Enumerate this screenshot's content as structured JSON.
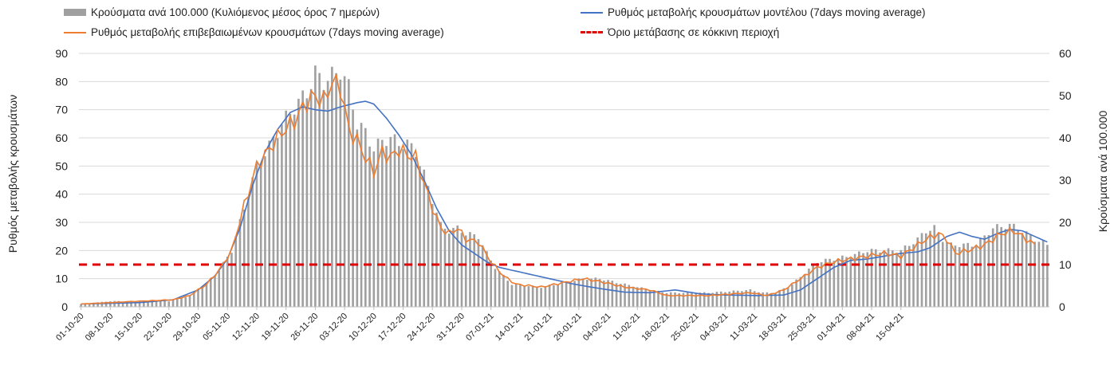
{
  "chart_data": {
    "type": "bar+line",
    "legend": [
      {
        "key": "bars",
        "label": "Κρούσματα ανά 100.000 (Κυλιόμενος μέσος όρος 7 ημερών)",
        "color": "#a0a0a0"
      },
      {
        "key": "model",
        "label": "Ρυθμός μεταβολής κρουσμάτων μοντέλου (7days moving average)",
        "color": "#4472c4"
      },
      {
        "key": "confirmed",
        "label": "Ρυθμός μεταβολής επιβεβαιωμένων κρουσμάτων (7days moving average)",
        "color": "#ed7d31"
      },
      {
        "key": "threshold",
        "label": "Όριο μετάβασης σε κόκκινη περιοχή",
        "color": "#e00000"
      }
    ],
    "ylabel_left": "Ρυθμός μεταβολής κρουσμάτων",
    "ylabel_right": "Κρούσματα ανά 100.000",
    "ylim_left": [
      0,
      90
    ],
    "ylim_right": [
      0,
      60
    ],
    "yticks_left": [
      "0",
      "10",
      "20",
      "30",
      "40",
      "50",
      "60",
      "70",
      "80",
      "90"
    ],
    "yticks_right": [
      "0",
      "10",
      "20",
      "30",
      "40",
      "50",
      "60"
    ],
    "x_tick_labels": [
      "01-10-20",
      "08-10-20",
      "15-10-20",
      "22-10-20",
      "29-10-20",
      "05-11-20",
      "12-11-20",
      "19-11-20",
      "26-11-20",
      "03-12-20",
      "10-12-20",
      "17-12-20",
      "24-12-20",
      "31-12-20",
      "07-01-21",
      "14-01-21",
      "21-01-21",
      "28-01-21",
      "04-02-21",
      "11-02-21",
      "18-02-21",
      "25-02-21",
      "04-03-21",
      "11-03-21",
      "18-03-21",
      "25-03-21",
      "01-04-21",
      "08-04-21",
      "15-04-21"
    ],
    "threshold_left": 15,
    "bar_keyframes_left": [
      [
        0,
        1
      ],
      [
        7,
        2
      ],
      [
        14,
        2
      ],
      [
        21,
        2
      ],
      [
        26,
        4
      ],
      [
        30,
        8
      ],
      [
        33,
        13
      ],
      [
        36,
        20
      ],
      [
        39,
        35
      ],
      [
        42,
        50
      ],
      [
        45,
        57
      ],
      [
        48,
        65
      ],
      [
        51,
        71
      ],
      [
        54,
        76
      ],
      [
        56,
        83
      ],
      [
        58,
        80
      ],
      [
        60,
        82
      ],
      [
        62,
        84
      ],
      [
        64,
        78
      ],
      [
        66,
        65
      ],
      [
        68,
        62
      ],
      [
        70,
        56
      ],
      [
        72,
        59
      ],
      [
        74,
        60
      ],
      [
        76,
        58
      ],
      [
        78,
        58
      ],
      [
        80,
        55
      ],
      [
        82,
        47
      ],
      [
        84,
        38
      ],
      [
        86,
        29
      ],
      [
        88,
        27
      ],
      [
        90,
        28
      ],
      [
        92,
        26
      ],
      [
        95,
        25
      ],
      [
        97,
        19
      ],
      [
        99,
        14
      ],
      [
        101,
        11
      ],
      [
        103,
        8
      ],
      [
        110,
        7
      ],
      [
        120,
        10
      ],
      [
        124,
        10
      ],
      [
        130,
        8
      ],
      [
        136,
        6
      ],
      [
        140,
        5
      ],
      [
        150,
        5
      ],
      [
        160,
        6
      ],
      [
        163,
        5
      ],
      [
        166,
        5
      ],
      [
        170,
        8
      ],
      [
        173,
        12
      ],
      [
        176,
        16
      ],
      [
        180,
        17
      ],
      [
        184,
        18
      ],
      [
        188,
        20
      ],
      [
        192,
        20
      ],
      [
        196,
        20
      ],
      [
        198,
        22
      ],
      [
        200,
        24
      ],
      [
        202,
        27
      ],
      [
        204,
        28
      ],
      [
        206,
        24
      ],
      [
        208,
        22
      ],
      [
        210,
        22
      ],
      [
        214,
        22
      ],
      [
        218,
        28
      ],
      [
        222,
        29
      ],
      [
        224,
        28
      ],
      [
        228,
        24
      ],
      [
        231,
        22
      ]
    ],
    "model_keyframes_left": [
      [
        0,
        1
      ],
      [
        14,
        1.5
      ],
      [
        22,
        2.5
      ],
      [
        28,
        6
      ],
      [
        32,
        11
      ],
      [
        35,
        17
      ],
      [
        38,
        28
      ],
      [
        41,
        43
      ],
      [
        44,
        55
      ],
      [
        47,
        63
      ],
      [
        50,
        69
      ],
      [
        53,
        71
      ],
      [
        56,
        70
      ],
      [
        59,
        69.5
      ],
      [
        62,
        71
      ],
      [
        66,
        72.5
      ],
      [
        68,
        73
      ],
      [
        70,
        72
      ],
      [
        73,
        67
      ],
      [
        76,
        61
      ],
      [
        79,
        54
      ],
      [
        82,
        45
      ],
      [
        85,
        35
      ],
      [
        88,
        27
      ],
      [
        91,
        22
      ],
      [
        94,
        19
      ],
      [
        97,
        16
      ],
      [
        100,
        14
      ],
      [
        106,
        12
      ],
      [
        112,
        10
      ],
      [
        118,
        8
      ],
      [
        124,
        6.5
      ],
      [
        130,
        5.2
      ],
      [
        136,
        5
      ],
      [
        142,
        6
      ],
      [
        148,
        4.6
      ],
      [
        154,
        4.2
      ],
      [
        162,
        4
      ],
      [
        168,
        4.2
      ],
      [
        172,
        6
      ],
      [
        176,
        10
      ],
      [
        180,
        14
      ],
      [
        184,
        16.5
      ],
      [
        188,
        17
      ],
      [
        192,
        18
      ],
      [
        196,
        19
      ],
      [
        200,
        19.5
      ],
      [
        203,
        21
      ],
      [
        207,
        25
      ],
      [
        210,
        26.5
      ],
      [
        213,
        25
      ],
      [
        216,
        24
      ],
      [
        219,
        26
      ],
      [
        222,
        27.5
      ],
      [
        225,
        27
      ],
      [
        228,
        25
      ],
      [
        231,
        23
      ]
    ],
    "confirmed_keyframes_left": [
      [
        0,
        1
      ],
      [
        14,
        2
      ],
      [
        22,
        2.5
      ],
      [
        26,
        4
      ],
      [
        30,
        8
      ],
      [
        33,
        13
      ],
      [
        36,
        20
      ],
      [
        39,
        36
      ],
      [
        42,
        50
      ],
      [
        45,
        56
      ],
      [
        48,
        62
      ],
      [
        51,
        66
      ],
      [
        54,
        73
      ],
      [
        56,
        75
      ],
      [
        58,
        73
      ],
      [
        60,
        80
      ],
      [
        62,
        78
      ],
      [
        64,
        63
      ],
      [
        66,
        59
      ],
      [
        68,
        53
      ],
      [
        70,
        48
      ],
      [
        72,
        55
      ],
      [
        74,
        53
      ],
      [
        76,
        56
      ],
      [
        78,
        54
      ],
      [
        80,
        53
      ],
      [
        82,
        44
      ],
      [
        84,
        35
      ],
      [
        86,
        28
      ],
      [
        88,
        26
      ],
      [
        90,
        28
      ],
      [
        92,
        24
      ],
      [
        95,
        23
      ],
      [
        98,
        16
      ],
      [
        101,
        11
      ],
      [
        104,
        8
      ],
      [
        110,
        7
      ],
      [
        120,
        10
      ],
      [
        124,
        9
      ],
      [
        130,
        7
      ],
      [
        136,
        6
      ],
      [
        140,
        4
      ],
      [
        150,
        4
      ],
      [
        160,
        5
      ],
      [
        164,
        4
      ],
      [
        168,
        6
      ],
      [
        172,
        10
      ],
      [
        176,
        14
      ],
      [
        180,
        16
      ],
      [
        184,
        17
      ],
      [
        188,
        18
      ],
      [
        192,
        19
      ],
      [
        196,
        18
      ],
      [
        199,
        21
      ],
      [
        202,
        24
      ],
      [
        205,
        26
      ],
      [
        207,
        24
      ],
      [
        209,
        19
      ],
      [
        212,
        20
      ],
      [
        216,
        22
      ],
      [
        220,
        26
      ],
      [
        223,
        27
      ],
      [
        225,
        25
      ],
      [
        228,
        22
      ]
    ],
    "num_days": 232
  }
}
